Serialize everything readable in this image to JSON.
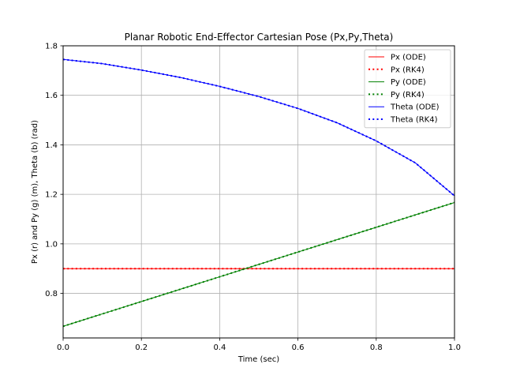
{
  "chart_data": {
    "type": "line",
    "title": "Planar Robotic End-Effector Cartesian Pose (Px,Py,Theta)",
    "xlabel": "Time (sec)",
    "ylabel": "Px (r) and Py (g) (m), Theta (b) (rad)",
    "xlim": [
      0,
      1
    ],
    "ylim": [
      0.62,
      1.8
    ],
    "xticks": [
      0,
      0.2,
      0.4,
      0.6,
      0.8,
      1
    ],
    "xtick_labels": [
      "0.0",
      "0.2",
      "0.4",
      "0.6",
      "0.8",
      "1.0"
    ],
    "yticks": [
      0.8,
      1.0,
      1.2,
      1.4,
      1.6,
      1.8
    ],
    "ytick_labels": [
      "0.8",
      "1.0",
      "1.2",
      "1.4",
      "1.6",
      "1.8"
    ],
    "grid": true,
    "legend_position": "top-right",
    "x": [
      0,
      0.1,
      0.2,
      0.3,
      0.4,
      0.5,
      0.6,
      0.7,
      0.8,
      0.9,
      1.0
    ],
    "series": [
      {
        "name": "Px (ODE)",
        "color": "#ff0000",
        "style": "solid",
        "values": [
          0.9,
          0.9,
          0.9,
          0.9,
          0.9,
          0.9,
          0.9,
          0.9,
          0.9,
          0.9,
          0.9
        ]
      },
      {
        "name": "Px (RK4)",
        "color": "#ff0000",
        "style": "dotted",
        "values": [
          0.9,
          0.9,
          0.9,
          0.9,
          0.9,
          0.9,
          0.9,
          0.9,
          0.9,
          0.9,
          0.9
        ]
      },
      {
        "name": "Py (ODE)",
        "color": "#008000",
        "style": "solid",
        "values": [
          0.667,
          0.717,
          0.767,
          0.817,
          0.867,
          0.917,
          0.967,
          1.017,
          1.067,
          1.117,
          1.167
        ]
      },
      {
        "name": "Py (RK4)",
        "color": "#008000",
        "style": "dotted",
        "values": [
          0.667,
          0.717,
          0.767,
          0.817,
          0.867,
          0.917,
          0.967,
          1.017,
          1.067,
          1.117,
          1.167
        ]
      },
      {
        "name": "Theta (ODE)",
        "color": "#0000ff",
        "style": "solid",
        "values": [
          1.745,
          1.728,
          1.702,
          1.672,
          1.636,
          1.595,
          1.547,
          1.489,
          1.416,
          1.327,
          1.194
        ]
      },
      {
        "name": "Theta (RK4)",
        "color": "#0000ff",
        "style": "dotted",
        "values": [
          1.745,
          1.728,
          1.702,
          1.672,
          1.636,
          1.595,
          1.547,
          1.489,
          1.416,
          1.327,
          1.194
        ]
      }
    ]
  }
}
